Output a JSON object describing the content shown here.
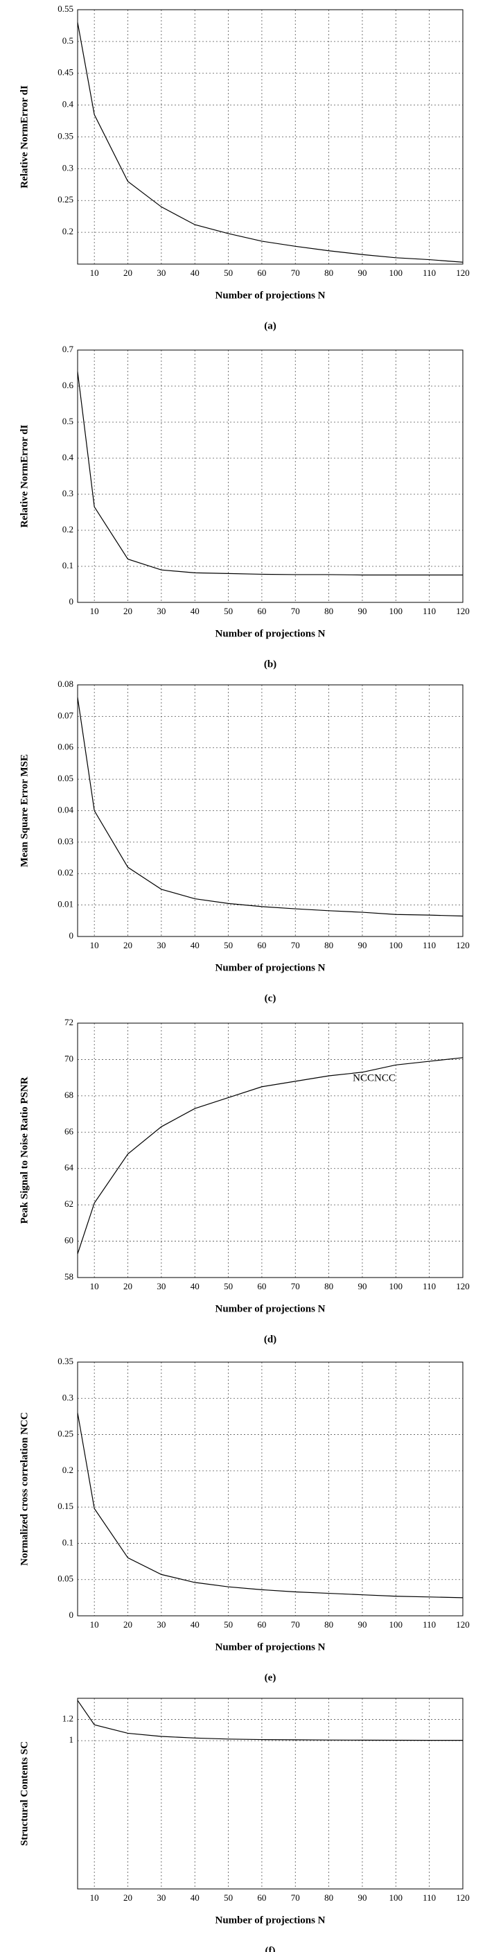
{
  "chart_data": [
    {
      "type": "line",
      "x_label": "Number of projections N",
      "y_label": "Relative NormError dI",
      "caption": "(a)",
      "x": [
        5,
        10,
        20,
        30,
        40,
        50,
        60,
        70,
        80,
        90,
        100,
        110,
        120
      ],
      "xlim": [
        5,
        120
      ],
      "xticks": [
        10,
        20,
        30,
        40,
        50,
        60,
        70,
        80,
        90,
        100,
        110,
        120
      ],
      "ylim": [
        0.15,
        0.55
      ],
      "yticks": [
        0.2,
        0.25,
        0.3,
        0.35,
        0.4,
        0.45,
        0.5,
        0.55
      ],
      "grid": true,
      "series": [
        {
          "color": "#000000",
          "values": [
            0.53,
            0.385,
            0.28,
            0.24,
            0.212,
            0.198,
            0.186,
            0.178,
            0.171,
            0.165,
            0.16,
            0.157,
            0.153
          ]
        }
      ]
    },
    {
      "type": "line",
      "x_label": "Number of projections N",
      "y_label": "Relative NormError dI",
      "caption": "(b)",
      "x": [
        5,
        10,
        20,
        30,
        40,
        50,
        60,
        70,
        80,
        90,
        100,
        110,
        120
      ],
      "xlim": [
        5,
        120
      ],
      "xticks": [
        10,
        20,
        30,
        40,
        50,
        60,
        70,
        80,
        90,
        100,
        110,
        120
      ],
      "ylim": [
        0,
        0.7
      ],
      "yticks": [
        0,
        0.1,
        0.2,
        0.3,
        0.4,
        0.5,
        0.6,
        0.7
      ],
      "grid": true,
      "series": [
        {
          "color": "#000000",
          "values": [
            0.64,
            0.265,
            0.12,
            0.09,
            0.082,
            0.08,
            0.078,
            0.077,
            0.077,
            0.076,
            0.076,
            0.076,
            0.076
          ]
        }
      ]
    },
    {
      "type": "line",
      "x_label": "Number of projections N",
      "y_label": "Mean Square Error MSE",
      "caption": "(c)",
      "x": [
        5,
        10,
        20,
        30,
        40,
        50,
        60,
        70,
        80,
        90,
        100,
        110,
        120
      ],
      "xlim": [
        5,
        120
      ],
      "xticks": [
        10,
        20,
        30,
        40,
        50,
        60,
        70,
        80,
        90,
        100,
        110,
        120
      ],
      "ylim": [
        0,
        0.08
      ],
      "yticks": [
        0,
        0.01,
        0.02,
        0.03,
        0.04,
        0.05,
        0.06,
        0.07,
        0.08
      ],
      "grid": true,
      "series": [
        {
          "color": "#000000",
          "values": [
            0.076,
            0.04,
            0.022,
            0.015,
            0.012,
            0.0105,
            0.0095,
            0.0088,
            0.0082,
            0.0077,
            0.007,
            0.0068,
            0.0065
          ]
        }
      ]
    },
    {
      "type": "line",
      "x_label": "Number of projections N",
      "y_label": "Peak Signal to Noise Ratio PSNR",
      "caption": "(d)",
      "annotation": "NCCNCC",
      "x": [
        5,
        10,
        20,
        30,
        40,
        50,
        60,
        70,
        80,
        90,
        100,
        110,
        120
      ],
      "xlim": [
        5,
        120
      ],
      "xticks": [
        10,
        20,
        30,
        40,
        50,
        60,
        70,
        80,
        90,
        100,
        110,
        120
      ],
      "ylim": [
        58,
        72
      ],
      "yticks": [
        58,
        60,
        62,
        64,
        66,
        68,
        70,
        72
      ],
      "grid": true,
      "series": [
        {
          "color": "#000000",
          "values": [
            59.3,
            62.1,
            64.8,
            66.3,
            67.3,
            67.9,
            68.5,
            68.8,
            69.1,
            69.3,
            69.7,
            69.9,
            70.1
          ]
        }
      ]
    },
    {
      "type": "line",
      "x_label": "Number of projections N",
      "y_label": "Normalized cross correlation NCC",
      "caption": "(e)",
      "x": [
        5,
        10,
        20,
        30,
        40,
        50,
        60,
        70,
        80,
        90,
        100,
        110,
        120
      ],
      "xlim": [
        5,
        120
      ],
      "xticks": [
        10,
        20,
        30,
        40,
        50,
        60,
        70,
        80,
        90,
        100,
        110,
        120
      ],
      "ylim": [
        0,
        0.35
      ],
      "yticks": [
        0,
        0.05,
        0.1,
        0.15,
        0.2,
        0.25,
        0.3,
        0.35
      ],
      "grid": true,
      "series": [
        {
          "color": "#000000",
          "values": [
            0.28,
            0.148,
            0.08,
            0.057,
            0.046,
            0.04,
            0.036,
            0.033,
            0.031,
            0.029,
            0.027,
            0.026,
            0.025
          ]
        }
      ]
    },
    {
      "type": "line",
      "x_label": "Number of projections N",
      "y_label": "Structural Contents SC",
      "caption": "(f)",
      "x": [
        5,
        10,
        20,
        30,
        40,
        50,
        60,
        70,
        80,
        90,
        100,
        110,
        120
      ],
      "xlim": [
        5,
        120
      ],
      "xticks": [
        10,
        20,
        30,
        40,
        50,
        60,
        70,
        80,
        90,
        100,
        110,
        120
      ],
      "ylim": [
        -0.4,
        1.4
      ],
      "yticks": [
        1,
        1.2
      ],
      "grid": true,
      "series": [
        {
          "color": "#000000",
          "values": [
            1.38,
            1.15,
            1.07,
            1.04,
            1.025,
            1.015,
            1.01,
            1.008,
            1.006,
            1.005,
            1.004,
            1.003,
            1.003
          ]
        }
      ]
    }
  ]
}
